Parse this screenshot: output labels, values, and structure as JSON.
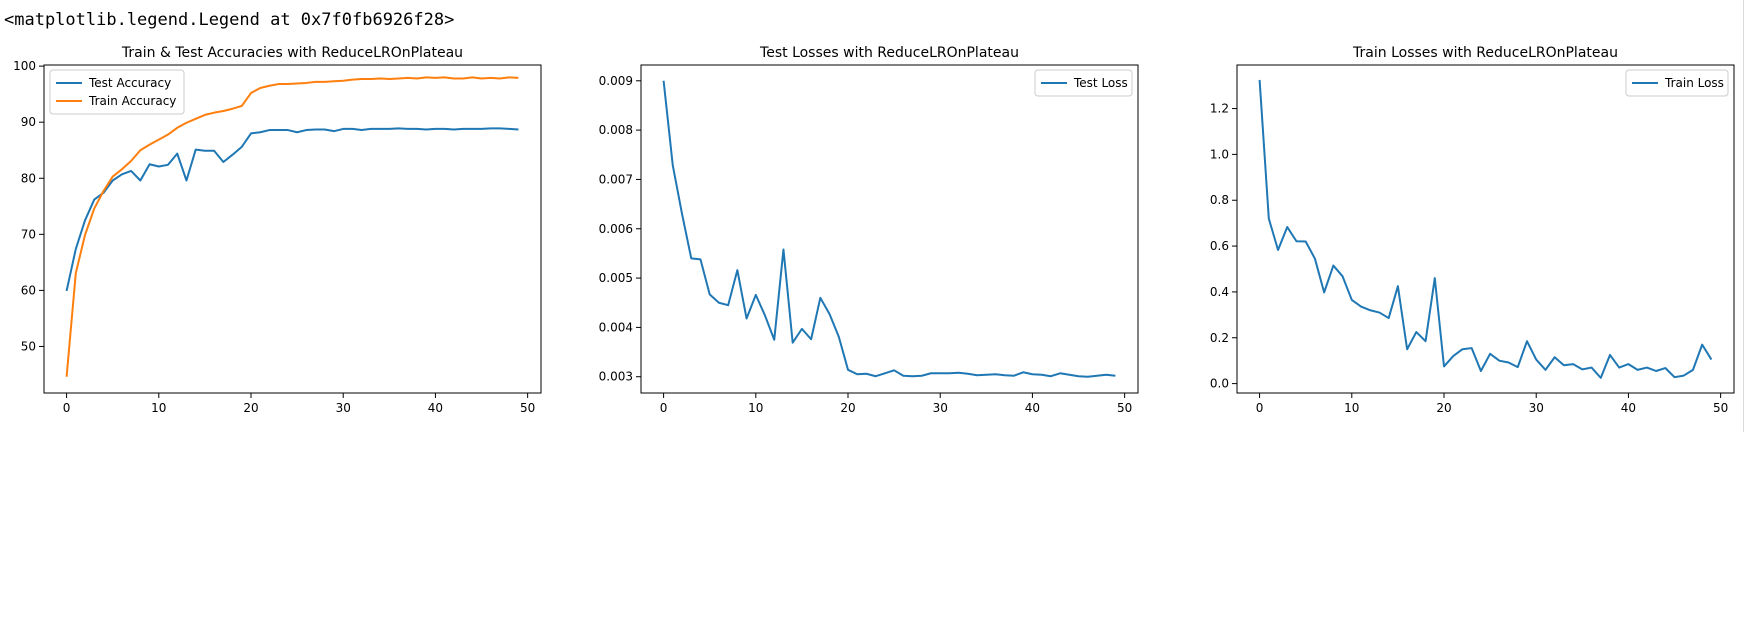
{
  "output_repr": "<matplotlib.legend.Legend at 0x7f0fb6926f28>",
  "chart_data": [
    {
      "type": "line",
      "title": "Train & Test Accuracies with ReduceLROnPlateau",
      "xlabel": "",
      "ylabel": "",
      "xlim": [
        -2.45,
        51.45
      ],
      "ylim": [
        41.7,
        100.2
      ],
      "xticks": [
        0,
        10,
        20,
        30,
        40,
        50
      ],
      "yticks": [
        50,
        60,
        70,
        80,
        90,
        100
      ],
      "grid": false,
      "legend_position": "upper left",
      "x": [
        0,
        1,
        2,
        3,
        4,
        5,
        6,
        7,
        8,
        9,
        10,
        11,
        12,
        13,
        14,
        15,
        16,
        17,
        18,
        19,
        20,
        21,
        22,
        23,
        24,
        25,
        26,
        27,
        28,
        29,
        30,
        31,
        32,
        33,
        34,
        35,
        36,
        37,
        38,
        39,
        40,
        41,
        42,
        43,
        44,
        45,
        46,
        47,
        48,
        49
      ],
      "series": [
        {
          "name": "Test Accuracy",
          "color": "#1f77b4",
          "values": [
            59.9,
            67.4,
            72.5,
            76.2,
            77.4,
            79.6,
            80.7,
            81.3,
            79.6,
            82.5,
            82.1,
            82.4,
            84.4,
            79.6,
            85.1,
            84.9,
            84.9,
            82.9,
            84.2,
            85.6,
            88.0,
            88.2,
            88.6,
            88.6,
            88.6,
            88.2,
            88.6,
            88.7,
            88.7,
            88.4,
            88.8,
            88.8,
            88.6,
            88.8,
            88.8,
            88.8,
            88.9,
            88.8,
            88.8,
            88.7,
            88.8,
            88.8,
            88.7,
            88.8,
            88.8,
            88.8,
            88.9,
            88.9,
            88.8,
            88.7
          ]
        },
        {
          "name": "Train Accuracy",
          "color": "#ff7f0e",
          "values": [
            44.6,
            63.1,
            69.9,
            74.6,
            77.7,
            80.3,
            81.6,
            83.1,
            85.0,
            86.0,
            86.9,
            87.8,
            89.0,
            89.9,
            90.6,
            91.3,
            91.7,
            92.0,
            92.4,
            92.9,
            95.2,
            96.1,
            96.5,
            96.8,
            96.8,
            96.9,
            97.0,
            97.2,
            97.2,
            97.3,
            97.4,
            97.6,
            97.7,
            97.7,
            97.8,
            97.7,
            97.8,
            97.9,
            97.8,
            98.0,
            97.9,
            98.0,
            97.8,
            97.8,
            98.0,
            97.8,
            97.9,
            97.8,
            98.0,
            97.9
          ]
        }
      ]
    },
    {
      "type": "line",
      "title": "Test Losses with ReduceLROnPlateau",
      "xlabel": "",
      "ylabel": "",
      "xlim": [
        -2.45,
        51.45
      ],
      "ylim": [
        0.00267,
        0.00932
      ],
      "xticks": [
        0,
        10,
        20,
        30,
        40,
        50
      ],
      "yticks": [
        0.003,
        0.004,
        0.005,
        0.006,
        0.007,
        0.008,
        0.009
      ],
      "grid": false,
      "legend_position": "upper right",
      "x": [
        0,
        1,
        2,
        3,
        4,
        5,
        6,
        7,
        8,
        9,
        10,
        11,
        12,
        13,
        14,
        15,
        16,
        17,
        18,
        19,
        20,
        21,
        22,
        23,
        24,
        25,
        26,
        27,
        28,
        29,
        30,
        31,
        32,
        33,
        34,
        35,
        36,
        37,
        38,
        39,
        40,
        41,
        42,
        43,
        44,
        45,
        46,
        47,
        48,
        49
      ],
      "series": [
        {
          "name": "Test Loss",
          "color": "#1f77b4",
          "values": [
            0.009,
            0.00728,
            0.0063,
            0.0054,
            0.00538,
            0.00467,
            0.0045,
            0.00445,
            0.00516,
            0.00418,
            0.00466,
            0.00424,
            0.00375,
            0.00558,
            0.00369,
            0.00397,
            0.00376,
            0.0046,
            0.00427,
            0.00381,
            0.00314,
            0.00305,
            0.00306,
            0.00301,
            0.00307,
            0.00313,
            0.00302,
            0.00301,
            0.00302,
            0.00307,
            0.00307,
            0.00307,
            0.00308,
            0.00306,
            0.00303,
            0.00304,
            0.00305,
            0.00303,
            0.00302,
            0.00309,
            0.00305,
            0.00304,
            0.00301,
            0.00307,
            0.00304,
            0.00301,
            0.003,
            0.00302,
            0.00304,
            0.00302
          ]
        }
      ]
    },
    {
      "type": "line",
      "title": "Train Losses with ReduceLROnPlateau",
      "xlabel": "",
      "ylabel": "",
      "xlim": [
        -2.45,
        51.45
      ],
      "ylim": [
        -0.041,
        1.39
      ],
      "xticks": [
        0,
        10,
        20,
        30,
        40,
        50
      ],
      "yticks": [
        0.0,
        0.2,
        0.4,
        0.6,
        0.8,
        1.0,
        1.2
      ],
      "grid": false,
      "legend_position": "upper right",
      "x": [
        0,
        1,
        2,
        3,
        4,
        5,
        6,
        7,
        8,
        9,
        10,
        11,
        12,
        13,
        14,
        15,
        16,
        17,
        18,
        19,
        20,
        21,
        22,
        23,
        24,
        25,
        26,
        27,
        28,
        29,
        30,
        31,
        32,
        33,
        34,
        35,
        36,
        37,
        38,
        39,
        40,
        41,
        42,
        43,
        44,
        45,
        46,
        47,
        48,
        49
      ],
      "series": [
        {
          "name": "Train Loss",
          "color": "#1f77b4",
          "values": [
            1.325,
            0.72,
            0.583,
            0.683,
            0.621,
            0.62,
            0.545,
            0.398,
            0.515,
            0.468,
            0.365,
            0.336,
            0.32,
            0.31,
            0.286,
            0.425,
            0.15,
            0.225,
            0.185,
            0.46,
            0.075,
            0.12,
            0.15,
            0.155,
            0.055,
            0.13,
            0.1,
            0.092,
            0.072,
            0.185,
            0.105,
            0.06,
            0.115,
            0.08,
            0.085,
            0.062,
            0.07,
            0.025,
            0.125,
            0.07,
            0.085,
            0.06,
            0.07,
            0.055,
            0.068,
            0.028,
            0.035,
            0.06,
            0.17,
            0.105
          ]
        }
      ]
    }
  ]
}
